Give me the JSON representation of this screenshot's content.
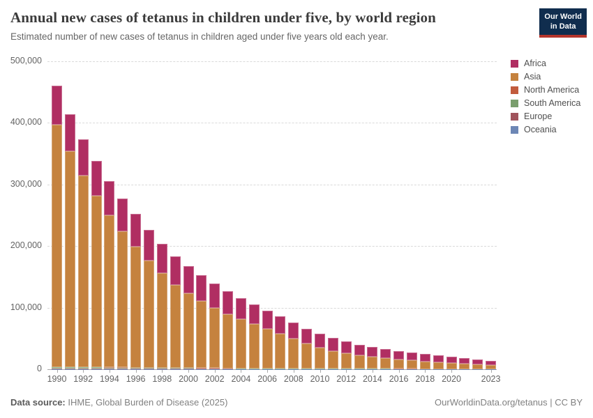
{
  "header": {
    "title": "Annual new cases of tetanus in children under five, by world region",
    "subtitle": "Estimated number of new cases of tetanus in children aged under five years old each year.",
    "logo": {
      "line1": "Our World",
      "line2": "in Data",
      "bg_color": "#102d4e",
      "accent_color": "#b5352c"
    }
  },
  "chart_data": {
    "type": "bar",
    "stacked": true,
    "title": "Annual new cases of tetanus in children under five, by world region",
    "xlabel": "",
    "ylabel": "",
    "ylim": [
      0,
      500000
    ],
    "grid": "horizontal-dashed",
    "legend_position": "right",
    "categories": [
      1990,
      1991,
      1992,
      1993,
      1994,
      1995,
      1996,
      1997,
      1998,
      1999,
      2000,
      2001,
      2002,
      2003,
      2004,
      2005,
      2006,
      2007,
      2008,
      2009,
      2010,
      2011,
      2012,
      2013,
      2014,
      2015,
      2016,
      2017,
      2018,
      2019,
      2020,
      2021,
      2022,
      2023
    ],
    "series": [
      {
        "name": "Africa",
        "color": "#b02e62",
        "values": [
          63000,
          60200,
          58400,
          56600,
          54800,
          53000,
          52200,
          49400,
          47600,
          45800,
          44000,
          42100,
          40200,
          37300,
          33900,
          32000,
          30100,
          28200,
          25800,
          24400,
          23450,
          21025,
          19090,
          17155,
          15720,
          14760,
          13820,
          12775,
          11730,
          10785,
          9850,
          8870,
          8155,
          6900
        ]
      },
      {
        "name": "Asia",
        "color": "#c5823e",
        "values": [
          393000,
          350000,
          311000,
          278000,
          247000,
          221000,
          197000,
          174000,
          154000,
          135000,
          121000,
          109000,
          97500,
          88000,
          80000,
          72000,
          64000,
          56500,
          48500,
          40500,
          33500,
          28500,
          25000,
          22000,
          19500,
          17000,
          15000,
          13600,
          12300,
          11000,
          9700,
          8700,
          7300,
          6200
        ]
      },
      {
        "name": "North America",
        "color": "#c25c3d",
        "values": [
          400,
          380,
          360,
          340,
          320,
          300,
          280,
          260,
          240,
          220,
          200,
          190,
          180,
          170,
          160,
          150,
          140,
          130,
          120,
          110,
          100,
          95,
          90,
          85,
          80,
          75,
          70,
          65,
          60,
          55,
          50,
          48,
          45,
          40
        ]
      },
      {
        "name": "South America",
        "color": "#7a9e6d",
        "values": [
          2400,
          2250,
          2100,
          1950,
          1800,
          1650,
          1500,
          1400,
          1300,
          1200,
          1100,
          1000,
          950,
          900,
          850,
          800,
          750,
          700,
          650,
          600,
          550,
          500,
          460,
          420,
          380,
          340,
          300,
          270,
          240,
          210,
          180,
          150,
          120,
          90
        ]
      },
      {
        "name": "Europe",
        "color": "#a0545c",
        "values": [
          800,
          760,
          720,
          680,
          640,
          600,
          560,
          520,
          480,
          440,
          400,
          380,
          360,
          340,
          320,
          300,
          280,
          260,
          240,
          220,
          200,
          190,
          180,
          170,
          160,
          150,
          140,
          130,
          120,
          110,
          100,
          90,
          75,
          60
        ]
      },
      {
        "name": "Oceania",
        "color": "#6d87b5",
        "values": [
          400,
          390,
          380,
          370,
          360,
          350,
          340,
          330,
          320,
          310,
          300,
          290,
          280,
          270,
          260,
          250,
          240,
          230,
          220,
          210,
          200,
          195,
          190,
          185,
          180,
          175,
          170,
          165,
          160,
          155,
          150,
          140,
          125,
          110
        ]
      }
    ],
    "stack_order_bottom_to_top": [
      "Oceania",
      "Europe",
      "South America",
      "North America",
      "Asia",
      "Africa"
    ],
    "yticks": [
      {
        "value": 0,
        "label": "0"
      },
      {
        "value": 100000,
        "label": "100,000"
      },
      {
        "value": 200000,
        "label": "200,000"
      },
      {
        "value": 300000,
        "label": "300,000"
      },
      {
        "value": 400000,
        "label": "400,000"
      },
      {
        "value": 500000,
        "label": "500,000"
      }
    ],
    "xtick_years": [
      1990,
      1992,
      1994,
      1996,
      1998,
      2000,
      2002,
      2004,
      2006,
      2008,
      2010,
      2012,
      2014,
      2016,
      2018,
      2020,
      2023
    ]
  },
  "footer": {
    "source_label": "Data source:",
    "source_text": "IHME, Global Burden of Disease (2025)",
    "link_text": "OurWorldinData.org/tetanus",
    "separator": " | ",
    "license_text": "CC BY"
  }
}
